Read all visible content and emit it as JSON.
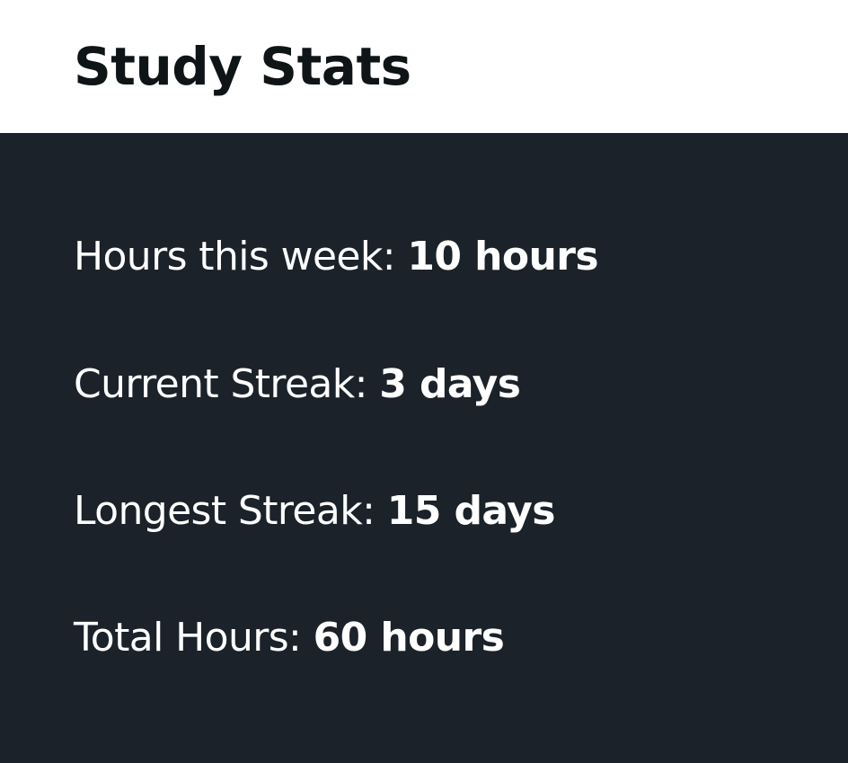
{
  "header": {
    "title": "Study Stats"
  },
  "stats": [
    {
      "label": "Hours this week: ",
      "value": "10 hours"
    },
    {
      "label": "Current Streak: ",
      "value": "3 days"
    },
    {
      "label": "Longest Streak: ",
      "value": "15 days"
    },
    {
      "label": "Total Hours: ",
      "value": "60 hours"
    }
  ],
  "colors": {
    "panel_background": "#1b2229",
    "header_background": "#ffffff",
    "title_text": "#0f1417",
    "stat_text": "#ffffff"
  }
}
